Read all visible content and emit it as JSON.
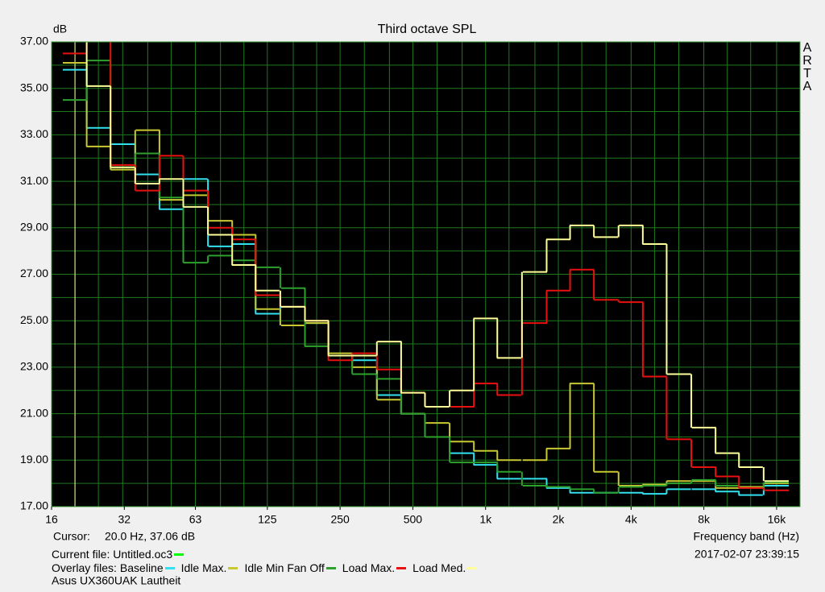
{
  "chart_data": {
    "type": "step",
    "title": "Third octave SPL",
    "ylabel": "dB",
    "xlabel": "Frequency band (Hz)",
    "watermark": "ARTA",
    "cursor": {
      "label": "Cursor:",
      "text": "20.0 Hz, 37.06 dB",
      "x": 20,
      "color": "#ffff99"
    },
    "current_file": "Current file: Untitled.oc3",
    "current_file_color": "#00ff00",
    "timestamp": "2017-02-07  23:39:15",
    "overlay_label": "Overlay files:",
    "caption": "Asus UX360UAK Lautheit",
    "x_scale": "log",
    "grid": true,
    "xlim": [
      16,
      20000
    ],
    "ylim": [
      17,
      37
    ],
    "xticks": [
      16,
      32,
      63,
      125,
      250,
      500,
      {
        "value": 1000,
        "label": "1k"
      },
      {
        "value": 2000,
        "label": "2k"
      },
      {
        "value": 4000,
        "label": "4k"
      },
      {
        "value": 8000,
        "label": "8k"
      },
      {
        "value": 16000,
        "label": "16k"
      }
    ],
    "yticks": [
      {
        "value": 17,
        "label": "17.00"
      },
      {
        "value": 19,
        "label": "19.00"
      },
      {
        "value": 21,
        "label": "21.00"
      },
      {
        "value": 23,
        "label": "23.00"
      },
      {
        "value": 25,
        "label": "25.00"
      },
      {
        "value": 27,
        "label": "27.00"
      },
      {
        "value": 29,
        "label": "29.00"
      },
      {
        "value": 31,
        "label": "31.00"
      },
      {
        "value": 33,
        "label": "33.00"
      },
      {
        "value": 35,
        "label": "35.00"
      },
      {
        "value": 37,
        "label": "37.00"
      }
    ],
    "x": [
      20,
      25,
      31.5,
      40,
      50,
      63,
      80,
      100,
      125,
      160,
      200,
      250,
      315,
      400,
      500,
      630,
      800,
      1000,
      1250,
      1600,
      2000,
      2500,
      3150,
      4000,
      5000,
      6300,
      8000,
      10000,
      12500,
      16000
    ],
    "series": [
      {
        "name": "Baseline",
        "color": "#33e0f0",
        "values": [
          35.8,
          33.3,
          32.6,
          31.3,
          29.8,
          31.1,
          28.2,
          28.3,
          25.3,
          25.6,
          24.9,
          23.5,
          23.3,
          21.8,
          21.0,
          20.0,
          19.3,
          18.8,
          18.2,
          18.2,
          17.8,
          17.6,
          17.6,
          17.6,
          17.55,
          17.75,
          17.75,
          17.65,
          17.5,
          17.9
        ]
      },
      {
        "name": "Idle Max.",
        "color": "#c8c832",
        "values": [
          36.1,
          32.5,
          31.5,
          33.2,
          30.2,
          30.4,
          29.3,
          28.7,
          25.5,
          24.8,
          24.9,
          23.6,
          23.0,
          21.6,
          21.0,
          20.6,
          19.8,
          19.4,
          19.0,
          19.0,
          19.5,
          22.3,
          18.5,
          17.9,
          17.95,
          18.1,
          18.1,
          17.8,
          17.85,
          18.0
        ]
      },
      {
        "name": "Idle Min Fan Off",
        "color": "#2ea02e",
        "values": [
          34.5,
          36.2,
          31.6,
          32.2,
          30.3,
          27.5,
          27.8,
          27.6,
          27.3,
          26.4,
          23.9,
          23.5,
          22.7,
          22.5,
          21.0,
          20.0,
          18.9,
          18.9,
          18.5,
          17.9,
          17.85,
          17.75,
          17.6,
          17.85,
          17.9,
          18.0,
          18.15,
          17.9,
          17.8,
          18.05
        ]
      },
      {
        "name": "Load Max.",
        "color": "#e81010",
        "values": [
          36.5,
          37.5,
          31.7,
          30.6,
          32.1,
          30.6,
          29.0,
          28.5,
          26.1,
          25.6,
          25.0,
          23.3,
          23.6,
          22.9,
          21.9,
          21.3,
          21.3,
          22.3,
          21.8,
          24.9,
          26.3,
          27.2,
          25.9,
          25.8,
          22.6,
          19.9,
          18.7,
          18.3,
          17.8,
          17.7
        ]
      },
      {
        "name": "Load Med.",
        "color": "#ffff99",
        "values": [
          37.5,
          35.1,
          31.6,
          30.9,
          31.1,
          29.9,
          28.7,
          27.4,
          26.3,
          25.6,
          25.0,
          23.5,
          23.5,
          24.1,
          21.9,
          21.3,
          22.0,
          25.1,
          23.4,
          27.1,
          28.5,
          29.1,
          28.6,
          29.1,
          28.3,
          22.7,
          20.4,
          19.3,
          18.7,
          18.1
        ]
      }
    ]
  }
}
